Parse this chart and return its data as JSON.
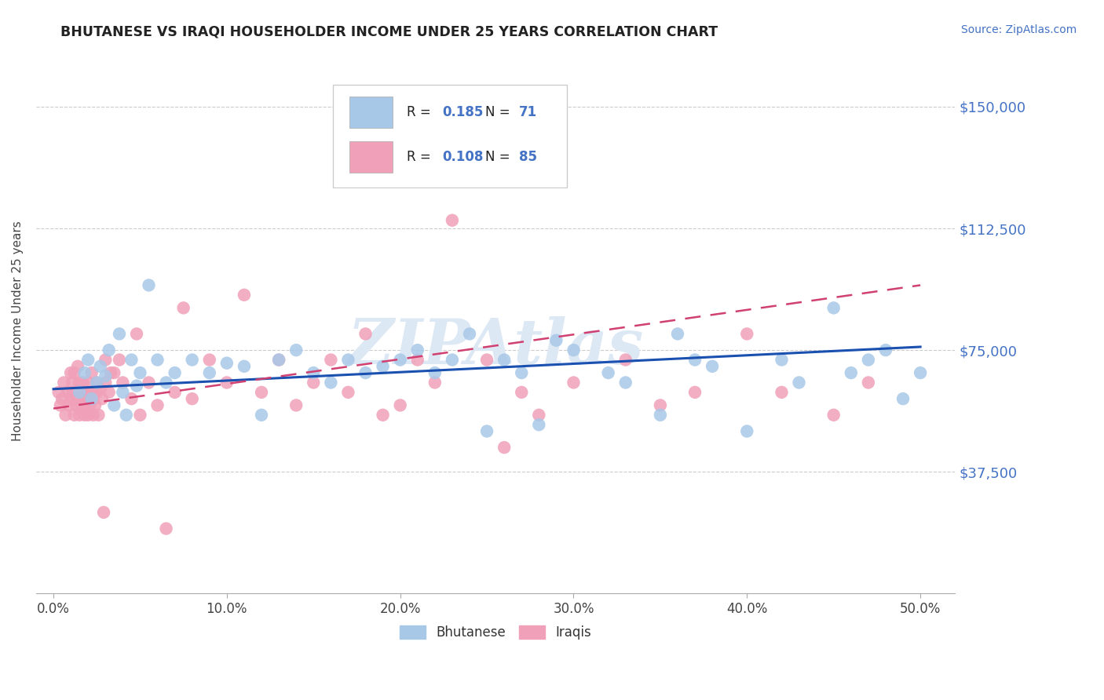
{
  "title": "BHUTANESE VS IRAQI HOUSEHOLDER INCOME UNDER 25 YEARS CORRELATION CHART",
  "source": "Source: ZipAtlas.com",
  "ylabel": "Householder Income Under 25 years",
  "xlabel_ticks": [
    "0.0%",
    "10.0%",
    "20.0%",
    "30.0%",
    "40.0%",
    "50.0%"
  ],
  "xlabel_vals": [
    0.0,
    10.0,
    20.0,
    30.0,
    40.0,
    50.0
  ],
  "ytick_labels": [
    "$37,500",
    "$75,000",
    "$112,500",
    "$150,000"
  ],
  "ytick_vals": [
    37500,
    75000,
    112500,
    150000
  ],
  "xlim": [
    -1,
    52
  ],
  "ylim": [
    0,
    162000
  ],
  "bhutanese_color": "#a8c8e8",
  "iraqi_color": "#f0a0b8",
  "bhutanese_line_color": "#1a50b0",
  "iraqi_line_color": "#d04070",
  "title_color": "#222222",
  "axis_label_color": "#4472c4",
  "source_color": "#4472c4",
  "watermark_color": "#dde8f5",
  "bhutanese_x": [
    1.5,
    1.8,
    2.0,
    2.2,
    2.5,
    2.7,
    3.0,
    3.2,
    3.5,
    3.8,
    4.0,
    4.2,
    4.5,
    4.8,
    5.0,
    5.5,
    6.0,
    6.5,
    7.0,
    8.0,
    9.0,
    10.0,
    11.0,
    12.0,
    13.0,
    14.0,
    15.0,
    16.0,
    17.0,
    18.0,
    19.0,
    20.0,
    21.0,
    22.0,
    23.0,
    24.0,
    25.0,
    26.0,
    27.0,
    28.0,
    29.0,
    30.0,
    32.0,
    33.0,
    35.0,
    36.0,
    37.0,
    38.0,
    40.0,
    42.0,
    43.0,
    45.0,
    46.0,
    47.0,
    48.0,
    49.0,
    50.0
  ],
  "bhutanese_y": [
    62000,
    68000,
    72000,
    60000,
    65000,
    70000,
    67000,
    75000,
    58000,
    80000,
    62000,
    55000,
    72000,
    64000,
    68000,
    95000,
    72000,
    65000,
    68000,
    72000,
    68000,
    71000,
    70000,
    55000,
    72000,
    75000,
    68000,
    65000,
    72000,
    68000,
    70000,
    72000,
    75000,
    68000,
    72000,
    80000,
    50000,
    72000,
    68000,
    52000,
    78000,
    75000,
    68000,
    65000,
    55000,
    80000,
    72000,
    70000,
    50000,
    72000,
    65000,
    88000,
    68000,
    72000,
    75000,
    60000,
    68000
  ],
  "iraqi_x": [
    0.3,
    0.4,
    0.5,
    0.6,
    0.7,
    0.8,
    0.9,
    1.0,
    1.0,
    1.1,
    1.1,
    1.2,
    1.2,
    1.3,
    1.3,
    1.4,
    1.4,
    1.5,
    1.5,
    1.6,
    1.6,
    1.7,
    1.7,
    1.8,
    1.8,
    1.9,
    1.9,
    2.0,
    2.0,
    2.1,
    2.1,
    2.2,
    2.2,
    2.3,
    2.3,
    2.4,
    2.5,
    2.5,
    2.6,
    2.7,
    2.8,
    3.0,
    3.0,
    3.2,
    3.5,
    3.8,
    4.0,
    4.5,
    5.0,
    5.5,
    6.0,
    7.0,
    8.0,
    9.0,
    10.0,
    12.0,
    14.0,
    15.0,
    16.0,
    17.0,
    18.0,
    19.0,
    20.0,
    22.0,
    25.0,
    27.0,
    28.0,
    30.0,
    33.0,
    35.0,
    37.0,
    40.0,
    42.0,
    45.0,
    47.0,
    13.0,
    4.8,
    3.3,
    2.9,
    6.5,
    7.5,
    11.0,
    21.0,
    23.0,
    26.0
  ],
  "iraqi_y": [
    62000,
    58000,
    60000,
    65000,
    55000,
    62000,
    58000,
    60000,
    68000,
    62000,
    65000,
    55000,
    68000,
    60000,
    58000,
    62000,
    70000,
    55000,
    65000,
    60000,
    58000,
    62000,
    65000,
    55000,
    60000,
    58000,
    62000,
    65000,
    55000,
    60000,
    58000,
    62000,
    68000,
    55000,
    60000,
    58000,
    62000,
    65000,
    55000,
    63000,
    60000,
    72000,
    65000,
    62000,
    68000,
    72000,
    65000,
    60000,
    55000,
    65000,
    58000,
    62000,
    60000,
    72000,
    65000,
    62000,
    58000,
    65000,
    72000,
    62000,
    80000,
    55000,
    58000,
    65000,
    72000,
    62000,
    55000,
    65000,
    72000,
    58000,
    62000,
    80000,
    62000,
    55000,
    65000,
    72000,
    80000,
    68000,
    25000,
    20000,
    88000,
    92000,
    72000,
    115000,
    45000
  ],
  "blue_line_x": [
    0,
    50
  ],
  "blue_line_y": [
    63000,
    76000
  ],
  "pink_line_x": [
    0,
    50
  ],
  "pink_line_y": [
    57000,
    95000
  ]
}
